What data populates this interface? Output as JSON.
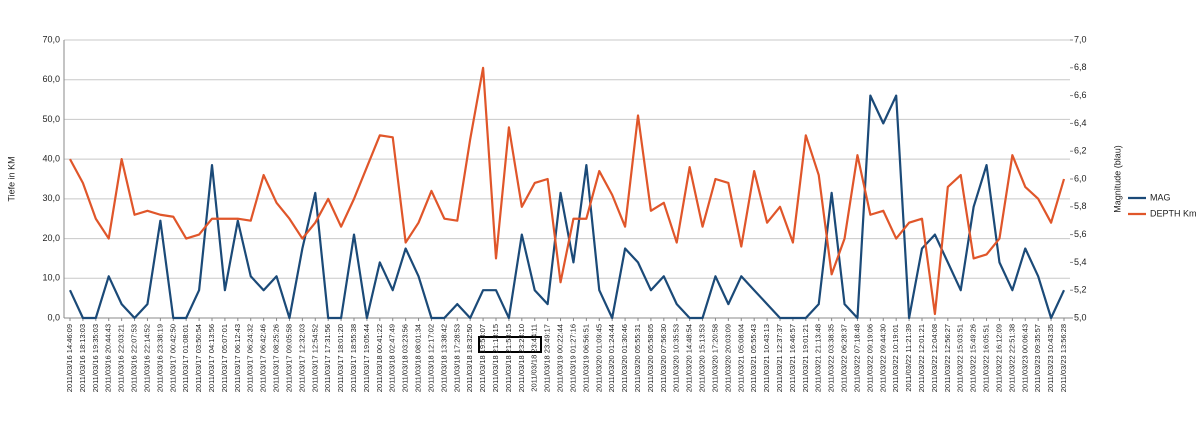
{
  "chart_data": {
    "type": "line",
    "y_label": "Tiefe in KM",
    "y2_label": "Magnitude (blau)",
    "categories": [
      "2011/03/16 14:46:09",
      "2011/03/16 18:13:03",
      "2011/03/16 19:35:03",
      "2011/03/16 20:44:43",
      "2011/03/16 22:03:21",
      "2011/03/16 22:07:53",
      "2011/03/16 22:14:52",
      "2011/03/16 23:38:19",
      "2011/03/17 00:42:50",
      "2011/03/17 01:08:01",
      "2011/03/17 03:50:54",
      "2011/03/17 04:13:56",
      "2011/03/17 05:07:01",
      "2011/03/17 06:12:43",
      "2011/03/17 06:24:32",
      "2011/03/17 06:42:46",
      "2011/03/17 08:25:26",
      "2011/03/17 09:05:58",
      "2011/03/17 12:32:03",
      "2011/03/17 12:54:52",
      "2011/03/17 17:31:56",
      "2011/03/17 18:01:20",
      "2011/03/17 18:55:38",
      "2011/03/17 19:05:44",
      "2011/03/18 00:41:22",
      "2011/03/18 02:47:49",
      "2011/03/18 03:23:56",
      "2011/03/18 08:01:34",
      "2011/03/18 12:17:02",
      "2011/03/18 13:38:42",
      "2011/03/18 17:28:53",
      "2011/03/18 18:32:50",
      "2011/03/18 19:53:07",
      "2011/03/18 21:18:15",
      "2011/03/18 21:58:15",
      "2011/03/18 23:23:10",
      "2011/03/18 23:44:11",
      "2011/03/18 23:49:17",
      "2011/03/19 00:22:44",
      "2011/03/19 01:27:16",
      "2011/03/19 06:56:51",
      "2011/03/20 01:09:45",
      "2011/03/20 01:24:44",
      "2011/03/20 01:30:46",
      "2011/03/20 05:55:31",
      "2011/03/20 05:58:05",
      "2011/03/20 07:56:30",
      "2011/03/20 10:35:53",
      "2011/03/20 14:48:54",
      "2011/03/20 15:13:53",
      "2011/03/20 17:20:58",
      "2011/03/20 20:03:09",
      "2011/03/21 05:08:04",
      "2011/03/21 05:55:43",
      "2011/03/21 10:43:13",
      "2011/03/21 12:37:37",
      "2011/03/21 16:46:57",
      "2011/03/21 19:01:21",
      "2011/03/21 21:13:48",
      "2011/03/22 03:38:35",
      "2011/03/22 06:28:37",
      "2011/03/22 07:18:48",
      "2011/03/22 09:19:06",
      "2011/03/22 09:44:30",
      "2011/03/22 10:19:01",
      "2011/03/22 11:21:39",
      "2011/03/22 12:01:21",
      "2011/03/22 12:04:08",
      "2011/03/22 12:56:27",
      "2011/03/22 15:03:51",
      "2011/03/22 15:49:26",
      "2011/03/22 16:05:51",
      "2011/03/22 16:12:09",
      "2011/03/22 22:51:38",
      "2011/03/23 00:06:43",
      "2011/03/23 09:35:57",
      "2011/03/23 10:43:35",
      "2011/03/23 13:56:28"
    ],
    "series": [
      {
        "name": "MAG",
        "color": "#1b4a78",
        "axis": "y2",
        "values": [
          5.2,
          5.0,
          5.0,
          5.3,
          5.1,
          5.0,
          5.1,
          5.7,
          5.0,
          5.0,
          5.2,
          6.1,
          5.2,
          5.7,
          5.3,
          5.2,
          5.3,
          5.0,
          5.5,
          5.9,
          5.0,
          5.0,
          5.6,
          5.0,
          5.4,
          5.2,
          5.5,
          5.3,
          5.0,
          5.0,
          5.1,
          5.0,
          5.2,
          5.2,
          5.0,
          5.6,
          5.2,
          5.1,
          5.9,
          5.4,
          6.1,
          5.2,
          5.0,
          5.5,
          5.4,
          5.2,
          5.3,
          5.1,
          5.0,
          5.0,
          5.3,
          5.1,
          5.3,
          5.2,
          5.1,
          5.0,
          5.0,
          5.0,
          5.1,
          5.9,
          5.1,
          5.0,
          6.6,
          6.4,
          6.6,
          5.0,
          5.5,
          5.6,
          5.4,
          5.2,
          5.8,
          6.1,
          5.4,
          5.2,
          5.5,
          5.3,
          5.0,
          5.2
        ]
      },
      {
        "name": "DEPTH Km",
        "color": "#e0562a",
        "values": [
          40,
          34,
          25,
          20,
          40,
          26,
          27,
          26,
          25.5,
          20,
          21,
          25,
          25,
          25,
          24.5,
          36,
          29,
          25,
          20,
          24,
          30,
          23,
          30,
          38,
          46,
          45.5,
          19,
          24,
          32,
          25,
          24.5,
          45,
          63,
          15,
          48,
          28,
          34,
          35,
          9,
          25,
          25,
          37,
          31,
          23,
          51,
          27,
          29,
          19,
          38,
          23,
          35,
          34,
          18,
          37,
          24,
          28,
          19,
          46,
          36,
          11,
          20,
          41,
          26,
          27,
          20,
          24,
          25,
          1,
          33,
          36,
          15,
          16,
          20,
          41,
          33,
          30,
          24,
          35
        ]
      }
    ],
    "ylim": [
      0,
      70
    ],
    "yticks": [
      {
        "value": 0,
        "label": "0,0"
      },
      {
        "value": 10,
        "label": "10,0"
      },
      {
        "value": 20,
        "label": "20,0"
      },
      {
        "value": 30,
        "label": "30,0"
      },
      {
        "value": 40,
        "label": "40,0"
      },
      {
        "value": 50,
        "label": "50,0"
      },
      {
        "value": 60,
        "label": "60,0"
      },
      {
        "value": 70,
        "label": "70,0"
      }
    ],
    "y2lim": [
      5,
      7
    ],
    "y2ticks": [
      {
        "value": 5,
        "label": "5,0"
      },
      {
        "value": 5.2,
        "label": "5,2"
      },
      {
        "value": 5.4,
        "label": "5,4"
      },
      {
        "value": 5.6,
        "label": "5,6"
      },
      {
        "value": 5.8,
        "label": "5,8"
      },
      {
        "value": 6,
        "label": "6,0"
      },
      {
        "value": 6.2,
        "label": "6,2"
      },
      {
        "value": 6.4,
        "label": "6,4"
      },
      {
        "value": 6.6,
        "label": "6,6"
      },
      {
        "value": 6.8,
        "label": "6,8"
      },
      {
        "value": 7,
        "label": "7,0"
      }
    ],
    "grid": true,
    "legend": "right"
  }
}
